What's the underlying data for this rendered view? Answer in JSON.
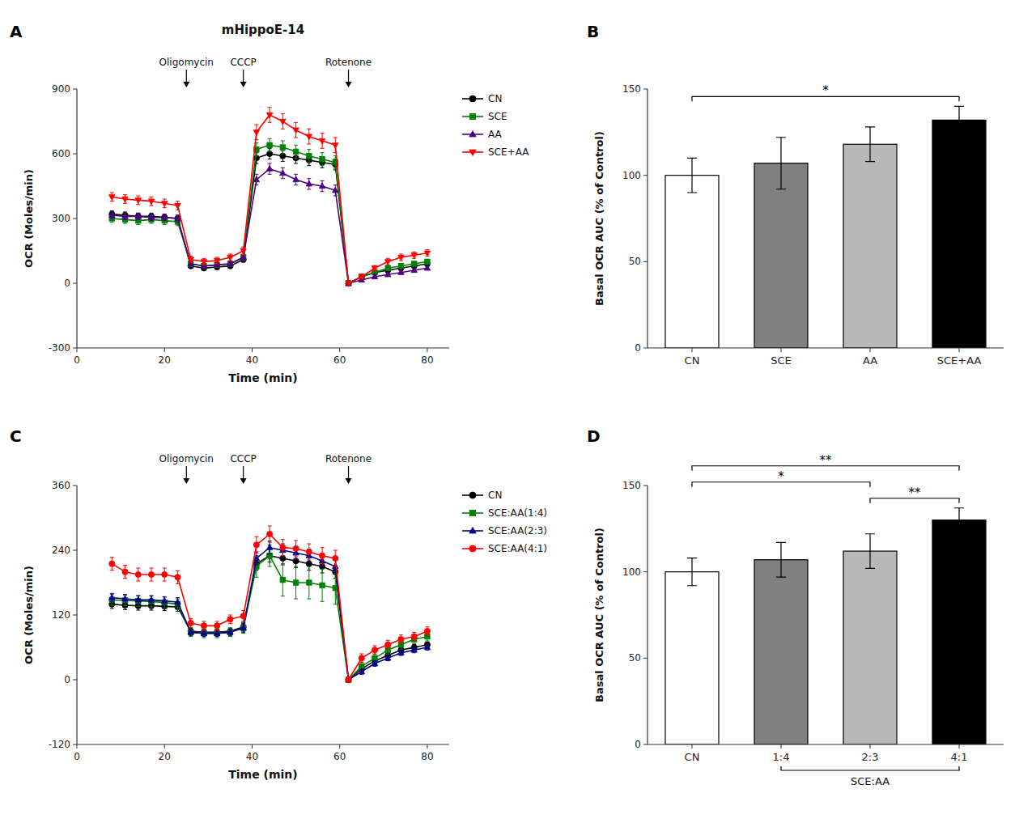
{
  "chart_data": [
    {
      "type": "line",
      "panel_label": "A",
      "title": "mHippoE-14",
      "xlabel": "Time (min)",
      "ylabel": "OCR (Moles/min)",
      "xlim": [
        0,
        85
      ],
      "xticks": [
        0,
        20,
        40,
        60,
        80
      ],
      "ylim": [
        -300,
        900
      ],
      "yticks": [
        -300,
        0,
        300,
        600,
        900
      ],
      "grid": false,
      "legend": "right",
      "series": [
        {
          "name": "CN",
          "color": "#000000",
          "marker": "circle",
          "x": [
            8,
            11,
            14,
            17,
            20,
            23,
            26,
            29,
            32,
            35,
            38,
            41,
            44,
            47,
            50,
            53,
            56,
            59,
            62,
            65,
            68,
            71,
            74,
            77,
            80
          ],
          "values": [
            320,
            315,
            310,
            310,
            305,
            300,
            80,
            70,
            75,
            80,
            110,
            580,
            600,
            590,
            580,
            570,
            560,
            550,
            0,
            30,
            50,
            60,
            70,
            80,
            90
          ],
          "errors": [
            15,
            15,
            15,
            15,
            15,
            15,
            10,
            10,
            10,
            10,
            12,
            25,
            25,
            25,
            25,
            25,
            25,
            25,
            10,
            10,
            10,
            10,
            10,
            10,
            10
          ]
        },
        {
          "name": "SCE",
          "color": "#008000",
          "marker": "square",
          "x": [
            8,
            11,
            14,
            17,
            20,
            23,
            26,
            29,
            32,
            35,
            38,
            41,
            44,
            47,
            50,
            53,
            56,
            59,
            62,
            65,
            68,
            71,
            74,
            77,
            80
          ],
          "values": [
            300,
            295,
            290,
            295,
            290,
            285,
            90,
            80,
            85,
            90,
            120,
            620,
            640,
            630,
            610,
            590,
            575,
            560,
            0,
            30,
            50,
            70,
            80,
            90,
            100
          ],
          "errors": [
            18,
            18,
            18,
            18,
            18,
            18,
            12,
            12,
            12,
            12,
            15,
            30,
            30,
            30,
            30,
            30,
            30,
            30,
            10,
            10,
            10,
            10,
            10,
            10,
            10
          ]
        },
        {
          "name": "AA",
          "color": "#4B0082",
          "marker": "triangle-up",
          "x": [
            8,
            11,
            14,
            17,
            20,
            23,
            26,
            29,
            32,
            35,
            38,
            41,
            44,
            47,
            50,
            53,
            56,
            59,
            62,
            65,
            68,
            71,
            74,
            77,
            80
          ],
          "values": [
            315,
            310,
            310,
            305,
            305,
            300,
            90,
            80,
            85,
            90,
            120,
            480,
            530,
            510,
            480,
            460,
            450,
            430,
            0,
            15,
            30,
            40,
            50,
            60,
            70
          ],
          "errors": [
            15,
            15,
            15,
            15,
            15,
            15,
            10,
            10,
            10,
            10,
            12,
            25,
            25,
            25,
            25,
            25,
            25,
            25,
            10,
            8,
            8,
            8,
            8,
            8,
            8
          ]
        },
        {
          "name": "SCE+AA",
          "color": "#FF0000",
          "marker": "triangle-down",
          "x": [
            8,
            11,
            14,
            17,
            20,
            23,
            26,
            29,
            32,
            35,
            38,
            41,
            44,
            47,
            50,
            53,
            56,
            59,
            62,
            65,
            68,
            71,
            74,
            77,
            80
          ],
          "values": [
            400,
            390,
            385,
            380,
            370,
            360,
            110,
            100,
            105,
            120,
            150,
            700,
            780,
            750,
            710,
            680,
            660,
            640,
            0,
            30,
            70,
            100,
            120,
            130,
            140
          ],
          "errors": [
            20,
            20,
            20,
            20,
            20,
            20,
            15,
            15,
            15,
            15,
            18,
            35,
            35,
            35,
            35,
            35,
            35,
            35,
            10,
            12,
            12,
            15,
            15,
            15,
            15
          ]
        }
      ],
      "annotations": [
        {
          "x": 25,
          "label": "Oligomycin"
        },
        {
          "x": 38,
          "label": "CCCP"
        },
        {
          "x": 62,
          "label": "Rotenone"
        }
      ]
    },
    {
      "type": "bar",
      "panel_label": "B",
      "ylabel": "Basal OCR AUC (% of Control)",
      "ylim": [
        0,
        150
      ],
      "yticks": [
        0,
        50,
        100,
        150
      ],
      "grid": false,
      "categories": [
        "CN",
        "SCE",
        "AA",
        "SCE+AA"
      ],
      "values": [
        100,
        107,
        118,
        132
      ],
      "errors": [
        10,
        15,
        10,
        8
      ],
      "colors": [
        "#ffffff",
        "#808080",
        "#b8b8b8",
        "#000000"
      ],
      "annotations": [
        {
          "from": "CN",
          "to": "SCE+AA",
          "label": "*"
        }
      ]
    },
    {
      "type": "line",
      "panel_label": "C",
      "xlabel": "Time (min)",
      "ylabel": "OCR (Moles/min)",
      "xlim": [
        0,
        85
      ],
      "xticks": [
        0,
        20,
        40,
        60,
        80
      ],
      "ylim": [
        -120,
        360
      ],
      "yticks": [
        -120,
        0,
        120,
        240,
        360
      ],
      "grid": false,
      "legend": "right",
      "series": [
        {
          "name": "CN",
          "color": "#000000",
          "marker": "circle",
          "x": [
            8,
            11,
            14,
            17,
            20,
            23,
            26,
            29,
            32,
            35,
            38,
            41,
            44,
            47,
            50,
            53,
            56,
            59,
            62,
            65,
            68,
            71,
            74,
            77,
            80
          ],
          "values": [
            140,
            138,
            137,
            137,
            136,
            135,
            90,
            88,
            88,
            90,
            98,
            215,
            230,
            225,
            220,
            215,
            210,
            200,
            0,
            20,
            35,
            45,
            55,
            60,
            65
          ],
          "errors": [
            8,
            8,
            8,
            8,
            8,
            8,
            6,
            6,
            6,
            6,
            8,
            12,
            12,
            12,
            12,
            12,
            12,
            12,
            5,
            5,
            5,
            5,
            5,
            5,
            5
          ]
        },
        {
          "name": "SCE:AA(1:4)",
          "color": "#008000",
          "marker": "square",
          "x": [
            8,
            11,
            14,
            17,
            20,
            23,
            26,
            29,
            32,
            35,
            38,
            41,
            44,
            47,
            50,
            53,
            56,
            59,
            62,
            65,
            68,
            71,
            74,
            77,
            80
          ],
          "values": [
            148,
            147,
            146,
            145,
            143,
            140,
            88,
            86,
            86,
            88,
            96,
            210,
            230,
            185,
            180,
            180,
            175,
            170,
            0,
            25,
            40,
            55,
            65,
            75,
            80
          ],
          "errors": [
            10,
            10,
            10,
            10,
            10,
            10,
            8,
            8,
            8,
            8,
            10,
            20,
            20,
            30,
            30,
            30,
            30,
            30,
            5,
            8,
            8,
            8,
            8,
            8,
            8
          ]
        },
        {
          "name": "SCE:AA(2:3)",
          "color": "#00008B",
          "marker": "triangle-up",
          "x": [
            8,
            11,
            14,
            17,
            20,
            23,
            26,
            29,
            32,
            35,
            38,
            41,
            44,
            47,
            50,
            53,
            56,
            59,
            62,
            65,
            68,
            71,
            74,
            77,
            80
          ],
          "values": [
            152,
            150,
            148,
            148,
            146,
            144,
            88,
            86,
            86,
            88,
            96,
            225,
            245,
            240,
            235,
            230,
            220,
            210,
            0,
            15,
            30,
            40,
            50,
            55,
            60
          ],
          "errors": [
            8,
            8,
            8,
            8,
            8,
            8,
            6,
            6,
            6,
            6,
            8,
            12,
            12,
            12,
            12,
            12,
            12,
            12,
            5,
            5,
            5,
            5,
            5,
            5,
            5
          ]
        },
        {
          "name": "SCE:AA(4:1)",
          "color": "#FF0000",
          "marker": "circle",
          "x": [
            8,
            11,
            14,
            17,
            20,
            23,
            26,
            29,
            32,
            35,
            38,
            41,
            44,
            47,
            50,
            53,
            56,
            59,
            62,
            65,
            68,
            71,
            74,
            77,
            80
          ],
          "values": [
            215,
            200,
            195,
            195,
            195,
            190,
            105,
            100,
            100,
            112,
            118,
            250,
            270,
            245,
            243,
            237,
            230,
            225,
            0,
            40,
            55,
            65,
            75,
            80,
            90
          ],
          "errors": [
            12,
            12,
            12,
            12,
            12,
            12,
            8,
            8,
            8,
            8,
            10,
            15,
            15,
            15,
            15,
            15,
            15,
            15,
            5,
            8,
            8,
            8,
            8,
            8,
            8
          ]
        }
      ],
      "annotations": [
        {
          "x": 25,
          "label": "Oligomycin"
        },
        {
          "x": 38,
          "label": "CCCP"
        },
        {
          "x": 62,
          "label": "Rotenone"
        }
      ]
    },
    {
      "type": "bar",
      "panel_label": "D",
      "ylabel": "Basal OCR AUC (% of Control)",
      "ylim": [
        0,
        150
      ],
      "yticks": [
        0,
        50,
        100,
        150
      ],
      "grid": false,
      "categories": [
        "CN",
        "1:4",
        "2:3",
        "4:1"
      ],
      "values": [
        100,
        107,
        112,
        130
      ],
      "errors": [
        8,
        10,
        10,
        7
      ],
      "colors": [
        "#ffffff",
        "#808080",
        "#b8b8b8",
        "#000000"
      ],
      "group_label": {
        "label": "SCE:AA",
        "from": "1:4",
        "to": "4:1"
      },
      "annotations": [
        {
          "from": "CN",
          "to": "4:1",
          "label": "**"
        },
        {
          "from": "CN",
          "to": "2:3",
          "label": "*"
        },
        {
          "from": "2:3",
          "to": "4:1",
          "label": "**"
        }
      ]
    }
  ]
}
